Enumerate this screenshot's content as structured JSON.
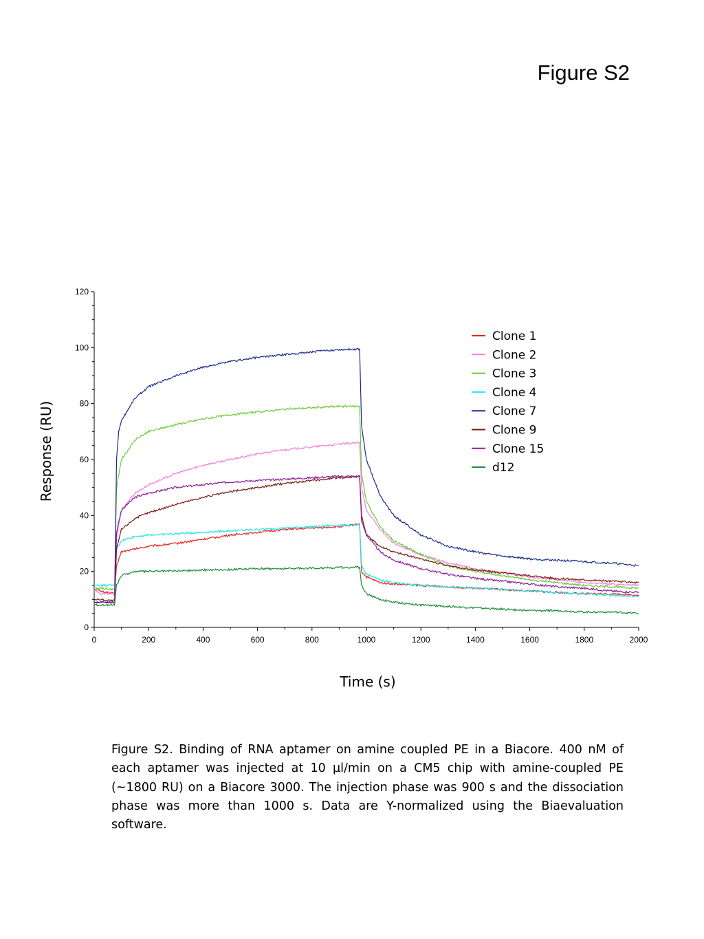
{
  "figure_heading": "Figure S2",
  "caption": "Figure S2. Binding of RNA aptamer on amine coupled PE in a Biacore. 400 nM of each aptamer was injected at 10 µl/min on a CM5 chip with amine-coupled PE (~1800 RU) on a Biacore 3000. The injection phase was 900 s and the dissociation phase was more than 1000 s. Data are Y-normalized using the Biaevaluation software.",
  "chart_data": {
    "type": "line",
    "title": "",
    "xlabel": "Time (s)",
    "ylabel": "Response (RU)",
    "xlim": [
      0,
      2000
    ],
    "ylim": [
      0,
      120
    ],
    "xticks": [
      0,
      200,
      400,
      600,
      800,
      1000,
      1200,
      1400,
      1600,
      1800,
      2000
    ],
    "yticks": [
      0,
      20,
      40,
      60,
      80,
      100,
      120
    ],
    "grid": false,
    "legend_position": "top-right",
    "series": [
      {
        "name": "Clone 1",
        "color": "#e8201c",
        "x": [
          0,
          8,
          20,
          75,
          82,
          100,
          150,
          200,
          300,
          400,
          500,
          600,
          700,
          800,
          900,
          975,
          982,
          1000,
          1050,
          1100,
          1200,
          1300,
          1400,
          1500,
          1600,
          1700,
          1800,
          1900,
          2000
        ],
        "y": [
          13,
          14,
          13,
          12,
          22,
          27,
          28,
          29,
          30,
          31.5,
          33,
          34,
          35,
          35.5,
          36,
          37,
          20,
          18,
          16,
          15.5,
          15,
          14.5,
          14,
          13.5,
          13,
          12.5,
          12,
          12,
          11.5
        ]
      },
      {
        "name": "Clone 2",
        "color": "#f080e0",
        "x": [
          0,
          8,
          20,
          75,
          82,
          100,
          150,
          200,
          300,
          400,
          500,
          600,
          700,
          800,
          900,
          975,
          982,
          1000,
          1050,
          1100,
          1200,
          1300,
          1400,
          1500,
          1600,
          1700,
          1800,
          1900,
          2000
        ],
        "y": [
          13,
          13,
          12,
          12,
          32,
          42,
          48,
          51,
          55,
          58,
          60,
          62,
          63.5,
          64.5,
          65.5,
          66,
          50,
          42,
          35,
          30,
          26,
          23,
          21,
          19.5,
          18,
          17,
          16,
          15.5,
          15
        ]
      },
      {
        "name": "Clone 3",
        "color": "#66cc33",
        "x": [
          0,
          8,
          20,
          75,
          82,
          100,
          150,
          200,
          300,
          400,
          500,
          600,
          700,
          800,
          900,
          975,
          982,
          1000,
          1050,
          1100,
          1200,
          1300,
          1400,
          1500,
          1600,
          1700,
          1800,
          1900,
          2000
        ],
        "y": [
          14,
          14,
          14,
          13.5,
          50,
          60,
          67,
          70,
          72.5,
          74.5,
          76,
          77,
          78,
          78.5,
          79,
          79,
          55,
          45,
          36,
          31,
          26,
          22,
          20,
          18.5,
          17,
          16,
          15,
          14.5,
          14
        ]
      },
      {
        "name": "Clone 4",
        "color": "#22e6e6",
        "x": [
          0,
          8,
          20,
          75,
          82,
          100,
          150,
          200,
          300,
          400,
          500,
          600,
          700,
          800,
          900,
          975,
          982,
          1000,
          1050,
          1100,
          1200,
          1300,
          1400,
          1500,
          1600,
          1700,
          1800,
          1900,
          2000
        ],
        "y": [
          15,
          15,
          15,
          15,
          28,
          31,
          32.5,
          33,
          33.5,
          34,
          34.5,
          35,
          35.5,
          36,
          36.5,
          36.5,
          22,
          19,
          17,
          16,
          15,
          14.5,
          14,
          13.5,
          13,
          12.5,
          12,
          11.5,
          11
        ]
      },
      {
        "name": "Clone 7",
        "color": "#1a2a8c",
        "x": [
          0,
          8,
          20,
          75,
          82,
          90,
          100,
          150,
          200,
          300,
          400,
          500,
          600,
          700,
          800,
          900,
          975,
          982,
          1000,
          1050,
          1100,
          1200,
          1300,
          1400,
          1500,
          1600,
          1700,
          1800,
          1900,
          2000
        ],
        "y": [
          9,
          9,
          9,
          9,
          60,
          70,
          74,
          82,
          86,
          90,
          93,
          95,
          96.5,
          97.5,
          98.5,
          99.3,
          99.5,
          72,
          60,
          47,
          40,
          33,
          29,
          27,
          25.5,
          24.5,
          24,
          23.5,
          23,
          22
        ]
      },
      {
        "name": "Clone 9",
        "color": "#7a1a10",
        "x": [
          0,
          8,
          20,
          75,
          82,
          100,
          150,
          200,
          300,
          400,
          500,
          600,
          700,
          800,
          900,
          975,
          982,
          1000,
          1050,
          1100,
          1200,
          1300,
          1400,
          1500,
          1600,
          1700,
          1800,
          1900,
          2000
        ],
        "y": [
          10,
          10,
          10,
          9.5,
          28,
          35,
          39,
          41,
          44,
          46.5,
          48.5,
          50,
          51.5,
          52.5,
          53.5,
          54,
          40,
          33,
          29,
          27,
          24.5,
          22,
          20.5,
          19.5,
          18.5,
          17.5,
          17,
          16.5,
          16
        ]
      },
      {
        "name": "Clone 15",
        "color": "#8a1a9a",
        "x": [
          0,
          8,
          20,
          75,
          82,
          100,
          150,
          200,
          300,
          400,
          500,
          600,
          700,
          800,
          900,
          975,
          982,
          1000,
          1050,
          1100,
          1200,
          1300,
          1400,
          1500,
          1600,
          1700,
          1800,
          1900,
          2000
        ],
        "y": [
          9,
          9,
          9,
          9,
          34,
          42,
          46.5,
          48,
          50,
          51,
          52,
          52.5,
          53,
          53.5,
          54,
          54,
          38,
          33,
          27,
          24,
          21,
          19,
          17.5,
          16.5,
          15.5,
          14.5,
          14,
          13,
          12.5
        ]
      },
      {
        "name": "d12",
        "color": "#1a8a3a",
        "x": [
          0,
          8,
          20,
          75,
          82,
          100,
          150,
          200,
          300,
          400,
          500,
          600,
          700,
          800,
          900,
          975,
          982,
          1000,
          1050,
          1100,
          1200,
          1300,
          1400,
          1500,
          1600,
          1700,
          1800,
          1900,
          2000
        ],
        "y": [
          8,
          8,
          8,
          8,
          15,
          18.5,
          20,
          20,
          20.2,
          20.5,
          20.7,
          21,
          21,
          21.2,
          21.4,
          21.5,
          15,
          12,
          10,
          9,
          8,
          7.5,
          7,
          6.5,
          6,
          6,
          5.5,
          5.5,
          5
        ]
      }
    ]
  }
}
